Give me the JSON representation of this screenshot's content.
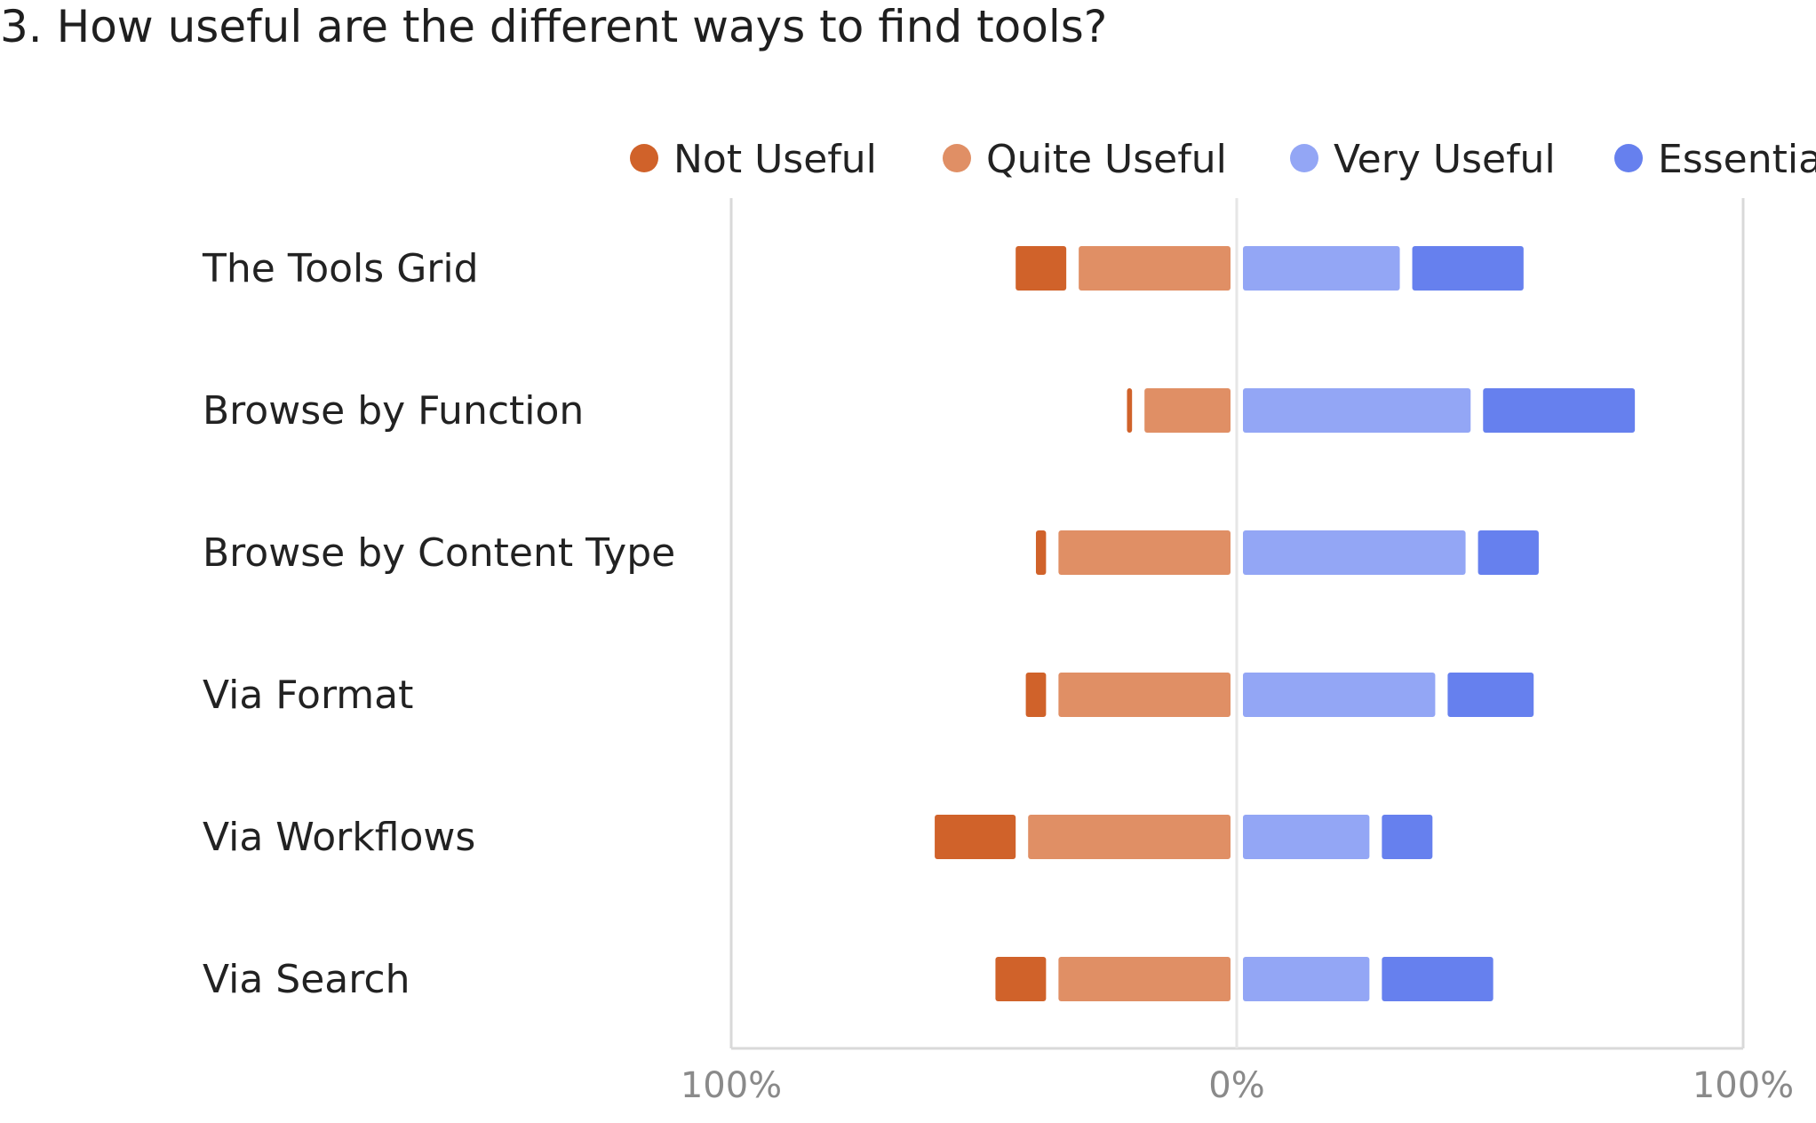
{
  "title": "3. How useful are the different ways to find tools?",
  "chart_data": {
    "type": "bar",
    "stacked": "diverging",
    "orientation": "horizontal",
    "categories": [
      "The Tools Grid",
      "Browse by Function",
      "Browse by Content Type",
      "Via Format",
      "Via Workflows",
      "Via Search"
    ],
    "series": [
      {
        "name": "Not Useful",
        "side": "negative",
        "color": "#d0622a",
        "values": [
          10,
          1,
          2,
          4,
          16,
          10
        ]
      },
      {
        "name": "Quite Useful",
        "side": "negative",
        "color": "#e08f65",
        "values": [
          30,
          17,
          34,
          34,
          40,
          34
        ]
      },
      {
        "name": "Very Useful",
        "side": "positive",
        "color": "#93a6f5",
        "values": [
          31,
          45,
          44,
          38,
          25,
          25
        ]
      },
      {
        "name": "Essential",
        "side": "positive",
        "color": "#6680ee",
        "values": [
          22,
          30,
          12,
          17,
          10,
          22
        ]
      }
    ],
    "xlim": [
      -100,
      100
    ],
    "ticks": [
      "100%",
      "0%",
      "100%"
    ],
    "legend_position": "top-right",
    "grid": false
  }
}
